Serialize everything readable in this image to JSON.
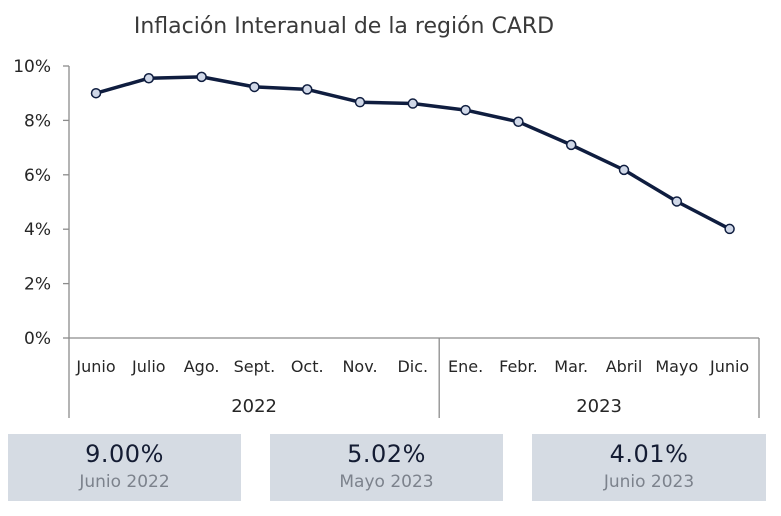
{
  "chart_data": {
    "type": "line",
    "title": "Inflación Interanual de la región CARD",
    "categories": [
      "Junio",
      "Julio",
      "Ago.",
      "Sept.",
      "Oct.",
      "Nov.",
      "Dic.",
      "Ene.",
      "Febr.",
      "Mar.",
      "Abril",
      "Mayo",
      "Junio"
    ],
    "groups": [
      {
        "label": "2022",
        "count": 7
      },
      {
        "label": "2023",
        "count": 6
      }
    ],
    "series": [
      {
        "values": [
          9.0,
          9.55,
          9.6,
          9.23,
          9.14,
          8.67,
          8.62,
          8.38,
          7.95,
          7.1,
          6.18,
          5.02,
          4.01
        ]
      }
    ],
    "ylim": [
      0,
      10
    ],
    "yticks": [
      "0%",
      "2%",
      "4%",
      "6%",
      "8%",
      "10%"
    ],
    "ytick_values": [
      0,
      2,
      4,
      6,
      8,
      10
    ],
    "grid": false,
    "legend": "none",
    "line_color": "#0f1d3f",
    "marker_fill": "#d0d8e8"
  },
  "cards": [
    {
      "value": "9.00%",
      "label": "Junio 2022"
    },
    {
      "value": "5.02%",
      "label": "Mayo 2023"
    },
    {
      "value": "4.01%",
      "label": "Junio 2023"
    }
  ]
}
